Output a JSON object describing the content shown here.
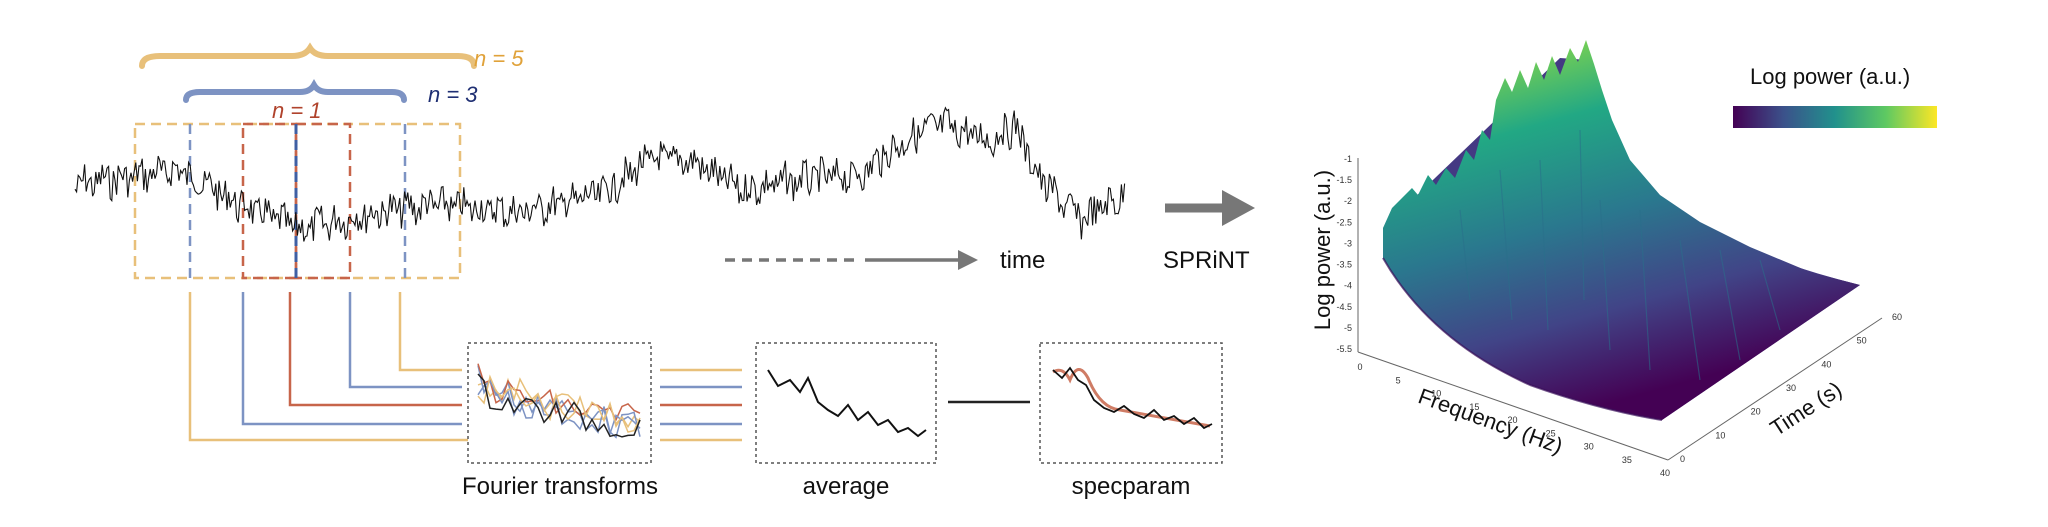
{
  "window_labels": {
    "n5": "n = 5",
    "n3": "n = 3",
    "n1": "n = 1"
  },
  "time_label": "time",
  "method_label": "SPRiNT",
  "boxes": {
    "fourier": "Fourier transforms",
    "average": "average",
    "specparam": "specparam"
  },
  "plot3d": {
    "colorbar_title": "Log power (a.u.)",
    "zlabel": "Log power (a.u.)",
    "xlabel": "Frequency (Hz)",
    "ylabel": "Time (s)",
    "z_ticks": [
      "-1",
      "-1.5",
      "-2",
      "-2.5",
      "-3",
      "-3.5",
      "-4",
      "-4.5",
      "-5",
      "-5.5"
    ],
    "x_ticks": [
      "0",
      "5",
      "10",
      "15",
      "20",
      "25",
      "30",
      "35",
      "40"
    ],
    "y_ticks": [
      "0",
      "10",
      "20",
      "30",
      "40",
      "50",
      "60"
    ]
  },
  "colors": {
    "n5": "#e8c07a",
    "n3": "#7d93c3",
    "n1": "#c7654a",
    "n5_text": "#e0a23a",
    "n3_text": "#1f2f73",
    "n1_text": "#b0432c",
    "colormap": [
      "#440154",
      "#3b528b",
      "#21918c",
      "#5ec962",
      "#fde725"
    ]
  }
}
